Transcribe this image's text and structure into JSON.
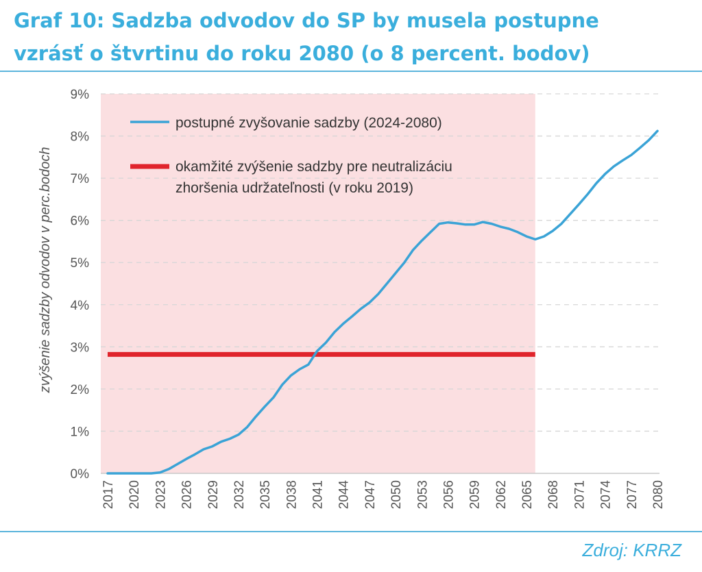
{
  "title": {
    "line1": "Graf 10: Sadzba odvodov do SP by musela postupne",
    "line2": "vzrásť o štvrtinu do roku 2080 (o 8 percent. bodov)"
  },
  "source": "Zdroj: KRRZ",
  "chart_data": {
    "type": "line",
    "ylabel": "zvýšenie sadzby odvodov v perc.bodoch",
    "ylim": [
      0,
      9
    ],
    "yticks": [
      "0%",
      "1%",
      "2%",
      "3%",
      "4%",
      "5%",
      "6%",
      "7%",
      "8%",
      "9%"
    ],
    "xlim": [
      2017,
      2080
    ],
    "xticks": [
      "2017",
      "2020",
      "2023",
      "2026",
      "2029",
      "2032",
      "2035",
      "2038",
      "2041",
      "2044",
      "2047",
      "2050",
      "2053",
      "2056",
      "2059",
      "2062",
      "2065",
      "2068",
      "2071",
      "2074",
      "2077",
      "2080"
    ],
    "grid": true,
    "legend_position": "top-left",
    "shaded_period": [
      2017,
      2066
    ],
    "colors": {
      "series_line": "#3aa3d6",
      "ref_line": "#e0242c",
      "shade": "#fbdfe1",
      "accent": "#3aaedc"
    },
    "series": [
      {
        "name": "postupné zvyšovanie sadzby (2024-2080)",
        "x": [
          2017,
          2018,
          2019,
          2020,
          2021,
          2022,
          2023,
          2024,
          2025,
          2026,
          2027,
          2028,
          2029,
          2030,
          2031,
          2032,
          2033,
          2034,
          2035,
          2036,
          2037,
          2038,
          2039,
          2040,
          2041,
          2042,
          2043,
          2044,
          2045,
          2046,
          2047,
          2048,
          2049,
          2050,
          2051,
          2052,
          2053,
          2054,
          2055,
          2056,
          2057,
          2058,
          2059,
          2060,
          2061,
          2062,
          2063,
          2064,
          2065,
          2066,
          2067,
          2068,
          2069,
          2070,
          2071,
          2072,
          2073,
          2074,
          2075,
          2076,
          2077,
          2078,
          2079,
          2080
        ],
        "values": [
          0,
          0,
          0,
          0,
          0,
          0,
          0.02,
          0.1,
          0.22,
          0.34,
          0.45,
          0.57,
          0.64,
          0.75,
          0.82,
          0.92,
          1.1,
          1.35,
          1.58,
          1.8,
          2.1,
          2.32,
          2.47,
          2.58,
          2.9,
          3.1,
          3.35,
          3.55,
          3.72,
          3.9,
          4.05,
          4.25,
          4.5,
          4.75,
          5.0,
          5.3,
          5.52,
          5.72,
          5.92,
          5.95,
          5.93,
          5.9,
          5.9,
          5.96,
          5.92,
          5.85,
          5.8,
          5.72,
          5.62,
          5.55,
          5.62,
          5.75,
          5.92,
          6.15,
          6.38,
          6.62,
          6.88,
          7.1,
          7.28,
          7.42,
          7.55,
          7.72,
          7.9,
          8.12
        ]
      },
      {
        "name": "okamžité zvýšenie sadzby pre neutralizáciu zhoršenia udržateľnosti (v roku 2019)",
        "x": [
          2017,
          2066
        ],
        "values": [
          2.82,
          2.82
        ]
      }
    ]
  }
}
